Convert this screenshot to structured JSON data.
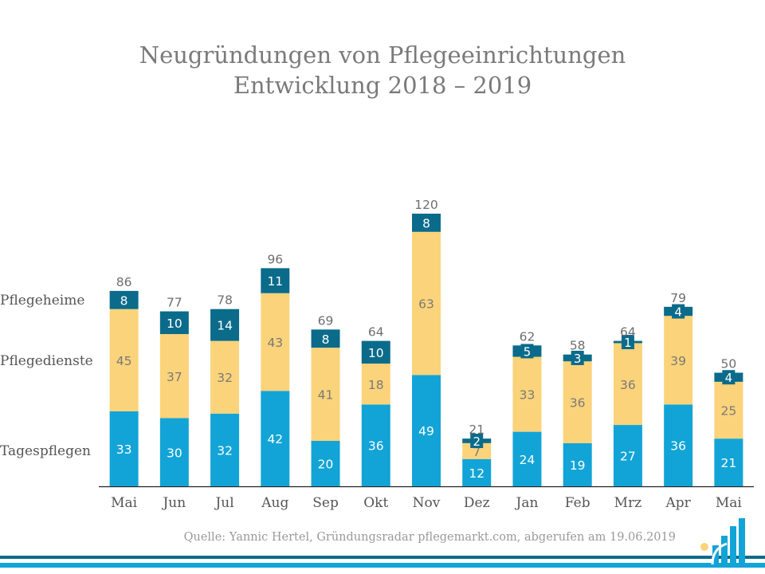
{
  "chart_data": {
    "type": "stacked-bar",
    "title": "Neugründungen von Pflegeeinrichtungen",
    "subtitle": "Entwicklung 2018 – 2019",
    "categories": [
      "Mai",
      "Jun",
      "Jul",
      "Aug",
      "Sep",
      "Okt",
      "Nov",
      "Dez",
      "Jan",
      "Feb",
      "Mrz",
      "Apr",
      "Mai"
    ],
    "series": [
      {
        "name": "Tagespflegen",
        "color": "#12a4d6",
        "values": [
          33,
          30,
          32,
          42,
          20,
          36,
          49,
          12,
          24,
          19,
          27,
          36,
          21
        ]
      },
      {
        "name": "Pflegedienste",
        "color": "#fbd37a",
        "values": [
          45,
          37,
          32,
          43,
          41,
          18,
          63,
          7,
          33,
          36,
          36,
          39,
          25
        ]
      },
      {
        "name": "Pflegeheime",
        "color": "#0b6b8a",
        "values": [
          8,
          10,
          14,
          11,
          8,
          10,
          8,
          2,
          5,
          3,
          1,
          4,
          4
        ]
      }
    ],
    "totals": [
      86,
      77,
      78,
      96,
      69,
      64,
      120,
      21,
      62,
      58,
      64,
      79,
      50
    ],
    "ylim": [
      0,
      120
    ],
    "xlabel": "",
    "ylabel": "",
    "legend": "left"
  },
  "source": "Quelle: Yannic Hertel, Gründungsradar pflegemarkt.com, abgerufen am 19.06.2019",
  "colors": {
    "title": "#7a7a7a",
    "label_dark": "#6e6e6e",
    "footer_blue": "#12a4d6",
    "footer_dark": "#0b6b8a",
    "footer_yellow": "#fbd37a"
  }
}
